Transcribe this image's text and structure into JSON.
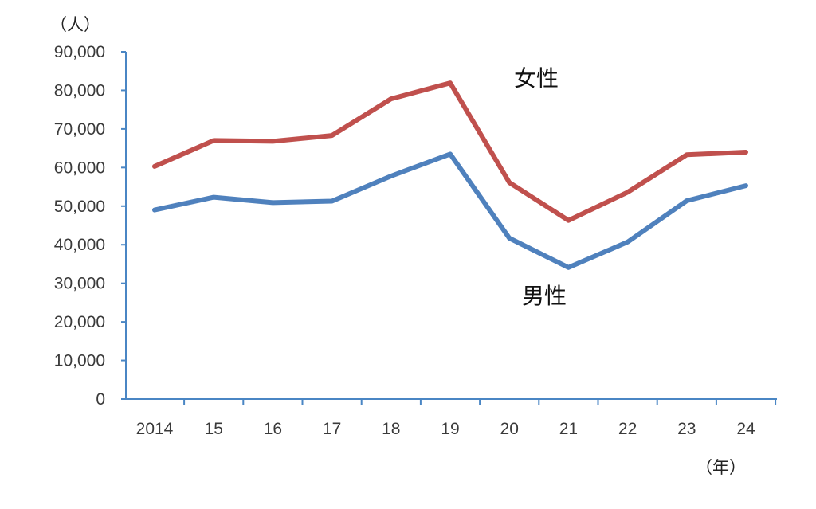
{
  "chart_data": {
    "type": "line",
    "title": "",
    "y_unit": "（人）",
    "x_unit": "（年）",
    "categories": [
      "2014",
      "15",
      "16",
      "17",
      "18",
      "19",
      "20",
      "21",
      "22",
      "23",
      "24"
    ],
    "ylim": [
      0,
      90000
    ],
    "y_ticks": [
      "0",
      "10,000",
      "20,000",
      "30,000",
      "40,000",
      "50,000",
      "60,000",
      "70,000",
      "80,000",
      "90,000"
    ],
    "grid": false,
    "legend": "inline-labels",
    "series": [
      {
        "name": "女性",
        "color": "#c0504d",
        "values": [
          60300,
          67000,
          66800,
          68300,
          77800,
          81900,
          56100,
          46300,
          53600,
          63300,
          64000
        ]
      },
      {
        "name": "男性",
        "color": "#4f81bd",
        "values": [
          49000,
          52300,
          50900,
          51300,
          57800,
          63500,
          41700,
          34100,
          40700,
          51400,
          55300
        ]
      }
    ],
    "axis_color": "#4a86c4"
  }
}
